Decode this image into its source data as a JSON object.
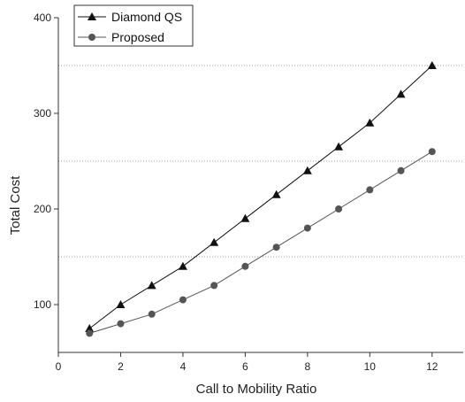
{
  "chart_data": {
    "type": "line",
    "title": "",
    "xlabel": "Call to Mobility Ratio",
    "ylabel": "Total Cost",
    "xlim": [
      0,
      13
    ],
    "ylim": [
      50,
      400
    ],
    "xticks": [
      0,
      2,
      4,
      6,
      8,
      10,
      12
    ],
    "yticks": [
      100,
      200,
      300,
      400
    ],
    "gridlines_y": [
      150,
      250,
      350
    ],
    "grid": "horizontal dotted",
    "legend_position": "top-left",
    "series": [
      {
        "name": "Diamond QS",
        "marker": "triangle",
        "color": "#111111",
        "x": [
          1,
          2,
          3,
          4,
          5,
          6,
          7,
          8,
          9,
          10,
          11,
          12
        ],
        "y": [
          75,
          100,
          120,
          140,
          165,
          190,
          215,
          240,
          265,
          290,
          320,
          350
        ]
      },
      {
        "name": "Proposed",
        "marker": "circle",
        "color": "#555555",
        "x": [
          1,
          2,
          3,
          4,
          5,
          6,
          7,
          8,
          9,
          10,
          11,
          12
        ],
        "y": [
          70,
          80,
          90,
          105,
          120,
          140,
          160,
          180,
          200,
          220,
          240,
          260
        ]
      }
    ]
  }
}
